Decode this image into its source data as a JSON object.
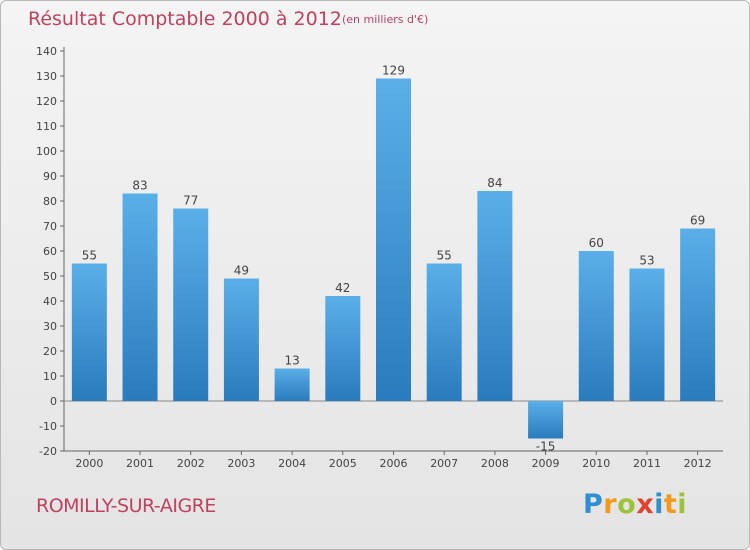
{
  "chart_data": {
    "type": "bar",
    "title": "Résultat Comptable 2000 à 2012",
    "subtitle": "(en milliers d'€)",
    "categories": [
      "2000",
      "2001",
      "2002",
      "2003",
      "2004",
      "2005",
      "2006",
      "2007",
      "2008",
      "2009",
      "2010",
      "2011",
      "2012"
    ],
    "values": [
      55,
      83,
      77,
      49,
      13,
      42,
      129,
      55,
      84,
      -15,
      60,
      53,
      69
    ],
    "value_labels": [
      "55",
      "83",
      "77",
      "49",
      "13",
      "42",
      "129",
      "55",
      "84",
      "-15",
      "60",
      "53",
      "69"
    ],
    "ylim": [
      -20,
      140
    ],
    "yticks": [
      -20,
      -10,
      0,
      10,
      20,
      30,
      40,
      50,
      60,
      70,
      80,
      90,
      100,
      110,
      120,
      130,
      140
    ],
    "xlabel": "",
    "ylabel": "",
    "grid": false,
    "legend": "none"
  },
  "commune": "ROMILLY-SUR-AIGRE",
  "logo": {
    "letters": [
      "P",
      "r",
      "o",
      "x",
      "i",
      "t",
      "i"
    ],
    "colors": [
      "#2f8fd0",
      "#f39a1d",
      "#9cc33a",
      "#e2412f",
      "#2f8fd0",
      "#f39a1d",
      "#9cc33a"
    ]
  },
  "colors": {
    "bar_top": "#5aafe8",
    "bar_bottom": "#2a7bbd",
    "text_accent": "#c0425f"
  }
}
